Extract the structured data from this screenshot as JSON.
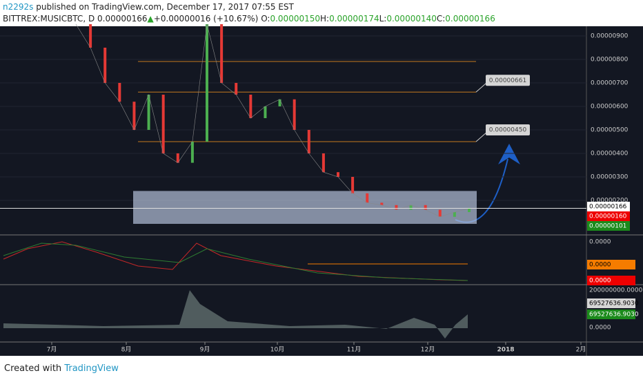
{
  "header": {
    "author": "n2292s",
    "published": "published on TradingView.com, December 17, 2017 07:55 EST",
    "symbol": "BITTREX:MUSICBTC, D",
    "last": "0.00000166",
    "arrow": "▲",
    "change": "+0.00000016 (+10.67%)",
    "ohlc": [
      {
        "label": "O:",
        "value": "0.00000150"
      },
      {
        "label": "H:",
        "value": "0.00000174"
      },
      {
        "label": "L:",
        "value": "0.00000140"
      },
      {
        "label": "C:",
        "value": "0.00000166"
      }
    ]
  },
  "price_axis": {
    "ticks": [
      {
        "value": 9e-06,
        "label": "0.00000900"
      },
      {
        "value": 8e-06,
        "label": "0.00000800"
      },
      {
        "value": 7e-06,
        "label": "0.00000700"
      },
      {
        "value": 6e-06,
        "label": "0.00000600"
      },
      {
        "value": 5e-06,
        "label": "0.00000500"
      },
      {
        "value": 4e-06,
        "label": "0.00000400"
      },
      {
        "value": 3e-06,
        "label": "0.00000300"
      },
      {
        "value": 2e-06,
        "label": "0.00000200"
      }
    ],
    "last": {
      "value": 1.66e-06,
      "label": "0.00000166"
    },
    "red": {
      "value": 1.6e-06,
      "label": "0.00000160"
    },
    "green": {
      "value": 1.01e-06,
      "label": "0.00000101"
    }
  },
  "closes": [
    9.5e-06,
    8.5e-06,
    7e-06,
    6.2e-06,
    5e-06,
    6.5e-06,
    4e-06,
    3.6e-06,
    4.5e-06,
    9.5e-06,
    7e-06,
    6.5e-06,
    5.5e-06,
    6e-06,
    6.3e-06,
    5e-06,
    4e-06,
    3.2e-06,
    3e-06,
    2.3e-06,
    1.9e-06,
    1.8e-06,
    1.6e-06,
    1.8e-06,
    1.6e-06,
    1.3e-06,
    1.5e-06,
    1.66e-06
  ],
  "levels": [
    {
      "value": 6.61e-06,
      "label": "0.00000661"
    },
    {
      "value": 4.5e-06,
      "label": "0.00000450"
    }
  ],
  "zone": [
    2.4e-06,
    1e-06
  ],
  "oscillator": {
    "top": "0.0000",
    "orange": "0.0000",
    "red": "0.0000"
  },
  "volume": {
    "top": "200000000.0000",
    "gray": "69527636.9030",
    "green": "69527636.9030",
    "zero": "0.0000"
  },
  "time_axis": [
    "7月",
    "8月",
    "9月",
    "10月",
    "11月",
    "12月",
    "2018",
    "2月"
  ],
  "footer": {
    "created": "Created with",
    "brand": "TradingView"
  }
}
